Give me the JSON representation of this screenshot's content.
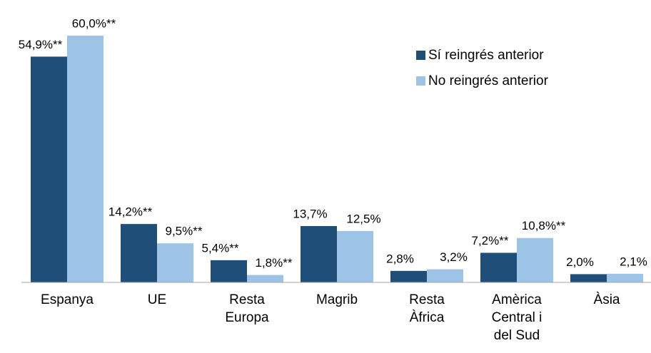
{
  "chart_data": {
    "type": "bar",
    "categories": [
      "Espanya",
      "UE",
      "Resta\nEuropa",
      "Magrib",
      "Resta\nÀfrica",
      "Amèrica\nCentral i\ndel Sud",
      "Àsia"
    ],
    "series": [
      {
        "name": "Sí reingrés anterior",
        "color": "#1f4e79",
        "values": [
          54.9,
          14.2,
          5.4,
          13.7,
          2.8,
          7.2,
          2.0
        ],
        "value_labels": [
          "54,9%**",
          "14,2%**",
          "5,4%**",
          "13,7%",
          "2,8%",
          "7,2%**",
          "2,0%"
        ]
      },
      {
        "name": "No reingrés anterior",
        "color": "#9dc3e6",
        "values": [
          60.0,
          9.5,
          1.8,
          12.5,
          3.2,
          10.8,
          2.1
        ],
        "value_labels": [
          "60,0%**",
          "9,5%**",
          "1,8%**",
          "12,5%",
          "3,2%",
          "10,8%**",
          "2,1%"
        ]
      }
    ],
    "ylim": [
      0,
      60
    ],
    "legend": "top-right"
  }
}
